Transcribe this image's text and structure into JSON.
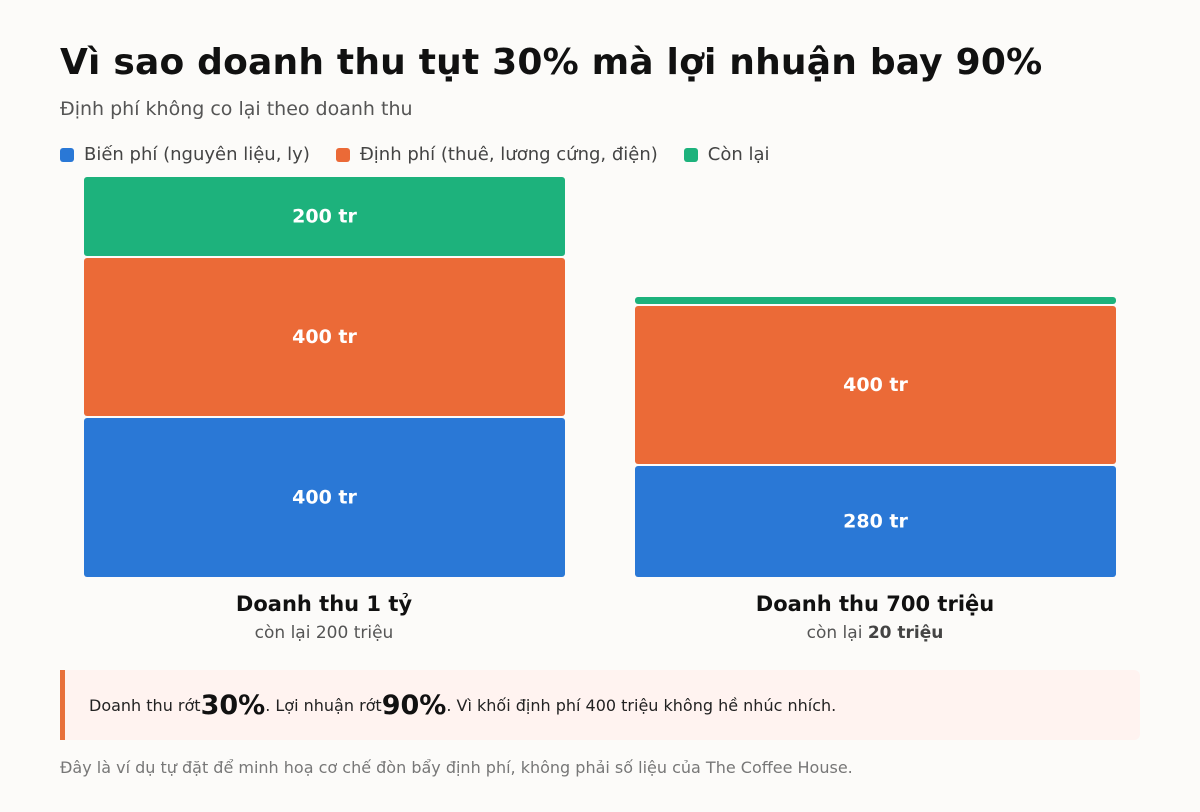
{
  "header": {
    "title": "Vì sao doanh thu tụt 30% mà lợi nhuận bay 90%",
    "subtitle": "Định phí không co lại theo doanh thu"
  },
  "legend": [
    {
      "label": "Biến phí (nguyên liệu, ly)",
      "color": "#2a78d6"
    },
    {
      "label": "Định phí (thuê, lương cứng, điện)",
      "color": "#eb6a37"
    },
    {
      "label": "Còn lại",
      "color": "#1db27c"
    }
  ],
  "chart_data": {
    "type": "bar",
    "stacked": true,
    "unit": "tr",
    "categories": [
      "Doanh thu 1 tỷ",
      "Doanh thu 700 triệu"
    ],
    "series": [
      {
        "name": "Biến phí (nguyên liệu, ly)",
        "color": "#2a78d6",
        "values": [
          400,
          280
        ],
        "labels": [
          "400 tr",
          "280 tr"
        ]
      },
      {
        "name": "Định phí (thuê, lương cứng, điện)",
        "color": "#eb6a37",
        "values": [
          400,
          400
        ],
        "labels": [
          "400 tr",
          "400 tr"
        ]
      },
      {
        "name": "Còn lại",
        "color": "#1db27c",
        "values": [
          200,
          20
        ],
        "labels": [
          "200 tr",
          ""
        ]
      }
    ],
    "ylim": [
      0,
      1000
    ]
  },
  "categories": [
    {
      "label": "Doanh thu 1 tỷ",
      "remain_prefix": "còn lại ",
      "remain_value": "200 triệu"
    },
    {
      "label": "Doanh thu 700 triệu",
      "remain_prefix": "còn lại ",
      "remain_value": "20 triệu"
    }
  ],
  "callout": {
    "t1": "Doanh thu rớt ",
    "v1": "30%",
    "t2": ". Lợi nhuận rớt ",
    "v2": "90%",
    "t3": ". Vì khối định phí 400 triệu không hề nhúc nhích."
  },
  "footnote": "Đây là ví dụ tự đặt để minh hoạ cơ chế đòn bẩy định phí, không phải số liệu của The Coffee House."
}
